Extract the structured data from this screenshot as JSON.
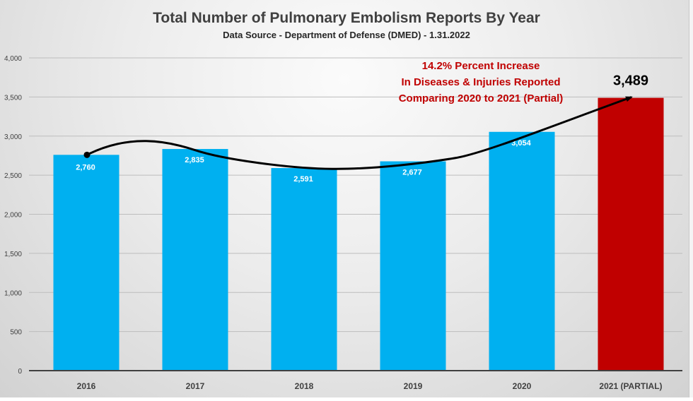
{
  "chart_data": {
    "type": "bar",
    "title": "Total Number of Pulmonary Embolism Reports By Year",
    "subtitle": "Data Source - Department of Defense (DMED) - 1.31.2022",
    "categories": [
      "2016",
      "2017",
      "2018",
      "2019",
      "2020",
      "2021 (PARTIAL)"
    ],
    "values": [
      2760,
      2835,
      2591,
      2677,
      3054,
      3489
    ],
    "data_labels": [
      "2,760",
      "2,835",
      "2,591",
      "2,677",
      "3,054",
      "3,489"
    ],
    "bar_colors": [
      "#00b0f0",
      "#00b0f0",
      "#00b0f0",
      "#00b0f0",
      "#00b0f0",
      "#c00000"
    ],
    "xlabel": "",
    "ylabel": "",
    "ylim": [
      0,
      4000
    ],
    "yticks": [
      0,
      500,
      1000,
      1500,
      2000,
      2500,
      3000,
      3500,
      4000
    ],
    "ytick_labels": [
      "0",
      "500",
      "1,000",
      "1,500",
      "2,000",
      "2,500",
      "3,000",
      "3,500",
      "4,000"
    ],
    "grid": true,
    "legend": "none",
    "annotation": {
      "lines": [
        "14.2% Percent Increase",
        "In Diseases & Injuries Reported",
        "Comparing 2020 to 2021 (Partial)"
      ],
      "color": "#c00000"
    },
    "trend_curve": {
      "description": "black smoothed arrow from 2016 bar top to 2021 bar top",
      "color": "#000000"
    }
  }
}
